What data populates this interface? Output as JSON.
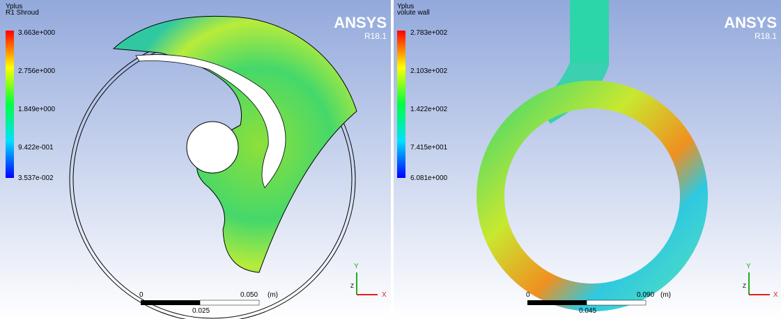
{
  "left": {
    "legend": {
      "variable": "Yplus",
      "location": "R1 Shroud",
      "labels": [
        "3.663e+000",
        "2.756e+000",
        "1.849e+000",
        "9.422e-001",
        "3.537e-002"
      ]
    },
    "brand": "ANSYS",
    "version": "R18.1",
    "scale": {
      "start": "0",
      "end": "0.050",
      "unit": "(m)",
      "mid": "0.025"
    },
    "axes": {
      "y": "Y",
      "z": "Z",
      "x": "X"
    }
  },
  "right": {
    "legend": {
      "variable": "Yplus",
      "location": "volute wall",
      "labels": [
        "2.783e+002",
        "2.103e+002",
        "1.422e+002",
        "7.415e+001",
        "6.081e+000"
      ]
    },
    "brand": "ANSYS",
    "version": "R18.1",
    "scale": {
      "start": "0",
      "end": "0.090",
      "unit": "(m)",
      "mid": "0.045"
    },
    "axes": {
      "y": "Y",
      "z": "Z",
      "x": "X"
    }
  }
}
